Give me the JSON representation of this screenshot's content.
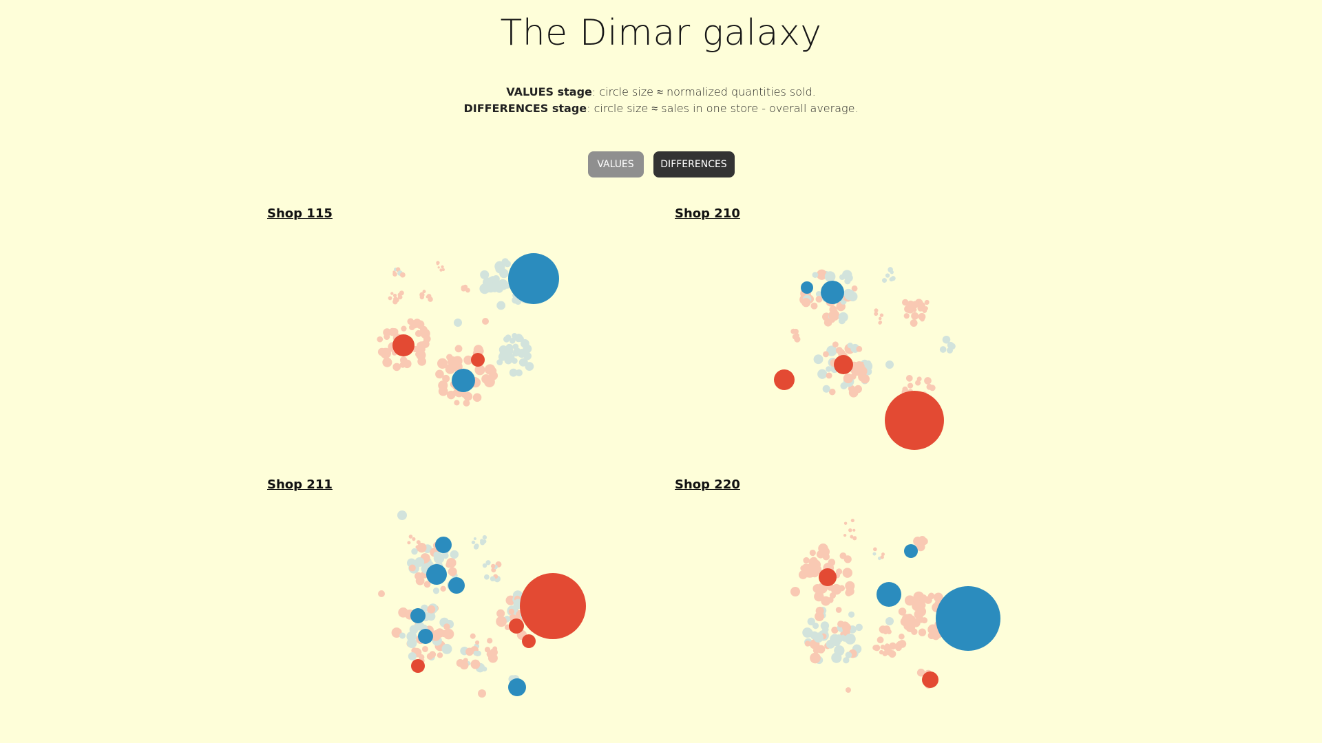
{
  "title": "The Dimar galaxy",
  "description": {
    "values_label": "VALUES stage",
    "values_text": ": circle size ≈ normalized quantities sold.",
    "differences_label": "DIFFERENCES stage",
    "differences_text": ": circle size ≈ sales in one store - overall average."
  },
  "buttons": {
    "values": "VALUES",
    "differences": "DIFFERENCES"
  },
  "colors": {
    "background": "#fefed9",
    "positive_strong": "#e34a33",
    "positive_light": "#f9c9b3",
    "negative_strong": "#2b8cbe",
    "negative_light": "#d2e3dc"
  },
  "shops": [
    {
      "name": "Shop 115"
    },
    {
      "name": "Shop 210"
    },
    {
      "name": "Shop 211"
    },
    {
      "name": "Shop 220"
    }
  ]
}
